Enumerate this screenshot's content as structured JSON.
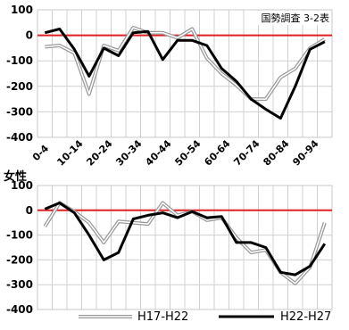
{
  "chart_data": [
    {
      "type": "line",
      "panel_label": "",
      "annotation": "国勢調査 3-2表",
      "categories": [
        "0-4",
        "5-9",
        "10-14",
        "15-19",
        "20-24",
        "25-29",
        "30-34",
        "35-39",
        "40-44",
        "45-49",
        "50-54",
        "55-59",
        "60-64",
        "65-69",
        "70-74",
        "75-79",
        "80-84",
        "85-89",
        "90-94",
        "95-"
      ],
      "xtick_labels": [
        "0-4",
        "10-14",
        "20-24",
        "30-34",
        "40-44",
        "50-54",
        "60-64",
        "70-74",
        "80-84",
        "90-94"
      ],
      "ylim": [
        -400,
        100
      ],
      "yticks": [
        100,
        0,
        -100,
        -200,
        -300,
        -400
      ],
      "grid": true,
      "zero_line_color": "#e02020",
      "series": [
        {
          "name": "H17-H22",
          "values": [
            -45,
            -40,
            -70,
            -230,
            -40,
            -60,
            30,
            10,
            10,
            -10,
            25,
            -90,
            -150,
            -195,
            -250,
            -250,
            -165,
            -130,
            -50,
            -15
          ]
        },
        {
          "name": "H22-H27",
          "values": [
            10,
            25,
            -55,
            -160,
            -50,
            -80,
            10,
            15,
            -95,
            -20,
            -20,
            -40,
            -130,
            -180,
            -250,
            -290,
            -325,
            -200,
            -55,
            -25
          ]
        }
      ]
    },
    {
      "type": "line",
      "panel_label": "女性",
      "annotation": "",
      "categories": [
        "0-4",
        "5-9",
        "10-14",
        "15-19",
        "20-24",
        "25-29",
        "30-34",
        "35-39",
        "40-44",
        "45-49",
        "50-54",
        "55-59",
        "60-64",
        "65-69",
        "70-74",
        "75-79",
        "80-84",
        "85-89",
        "90-94",
        "95-"
      ],
      "xtick_labels": [],
      "ylim": [
        -400,
        100
      ],
      "yticks": [
        100,
        0,
        -100,
        -200,
        -300,
        -400
      ],
      "grid": true,
      "zero_line_color": "#e02020",
      "series": [
        {
          "name": "H17-H22",
          "values": [
            -65,
            30,
            -5,
            -50,
            -130,
            -45,
            -50,
            -55,
            30,
            -20,
            -5,
            -40,
            -30,
            -110,
            -170,
            -160,
            -250,
            -295,
            -230,
            -50
          ]
        },
        {
          "name": "H22-H27",
          "values": [
            5,
            30,
            -10,
            -100,
            -200,
            -170,
            -35,
            -20,
            -10,
            -30,
            -5,
            -30,
            -25,
            -130,
            -130,
            -150,
            -250,
            -260,
            -225,
            -135
          ]
        }
      ]
    }
  ],
  "legend": {
    "items": [
      {
        "name": "H17-H22",
        "style": "double",
        "color": "#999999"
      },
      {
        "name": "H22-H27",
        "style": "thick",
        "color": "#000000"
      }
    ]
  },
  "colors": {
    "series1": "#999999",
    "series2": "#000000",
    "grid": "#d0d0d0",
    "axis_text": "#000000"
  }
}
